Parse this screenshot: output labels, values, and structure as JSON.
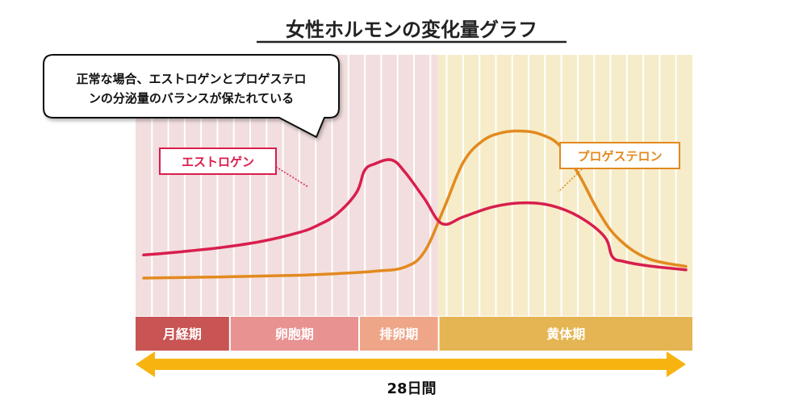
{
  "chart_data": {
    "type": "line",
    "title": "女性ホルモンの変化量グラフ",
    "xlabel": "28日間",
    "ylabel": "",
    "x_range": [
      0,
      28
    ],
    "y_range": [
      0,
      100
    ],
    "grid": true,
    "callout": "正常な場合、エストロゲンとプロゲステロンの分泌量のバランスが保たれている",
    "callout_lines": [
      "正常な場合、エストロゲンとプロゲステロ",
      "ンの分泌量のバランスが保たれている"
    ],
    "phases": [
      {
        "label": "月経期",
        "start": 0,
        "end": 4.7,
        "band_color": "#c85454",
        "bg_color": "#f2dede"
      },
      {
        "label": "卵胞期",
        "start": 4.7,
        "end": 11.2,
        "band_color": "#e99292",
        "bg_color": "#f2dede"
      },
      {
        "label": "排卵期",
        "start": 11.2,
        "end": 15.2,
        "band_color": "#efa588",
        "bg_color": "#f2dede"
      },
      {
        "label": "黄体期",
        "start": 15.2,
        "end": 28,
        "band_color": "#e4b552",
        "bg_color": "#f6ecc9"
      }
    ],
    "series": [
      {
        "name": "エストロゲン",
        "color": "#d81e4d",
        "x": [
          0,
          2,
          4,
          6,
          8,
          9,
          10,
          11,
          11.4,
          11.9,
          12.8,
          13.5,
          14.5,
          15.4,
          16.5,
          18,
          19.5,
          21,
          22.5,
          23.8,
          24.2,
          24.8,
          26,
          28
        ],
        "y": [
          14,
          16,
          18.5,
          22,
          27.5,
          32,
          39,
          52,
          65,
          69,
          71.5,
          64,
          48,
          33,
          37,
          43,
          45.5,
          44,
          37,
          25,
          13,
          10,
          7.5,
          5
        ]
      },
      {
        "name": "プロゲステロン",
        "color": "#e28a1f",
        "x": [
          0,
          4,
          8,
          10,
          12,
          13.5,
          14.5,
          15.5,
          16.5,
          17.5,
          18.5,
          19.5,
          20.5,
          21.5,
          22.5,
          23.5,
          24.5,
          26,
          28
        ],
        "y": [
          0,
          0.7,
          1.7,
          2.7,
          4.2,
          6.7,
          16,
          42,
          70,
          83,
          88,
          89,
          87,
          80,
          62,
          40,
          24,
          12,
          7
        ]
      }
    ]
  },
  "arrow": {
    "color": "#f7b411"
  }
}
